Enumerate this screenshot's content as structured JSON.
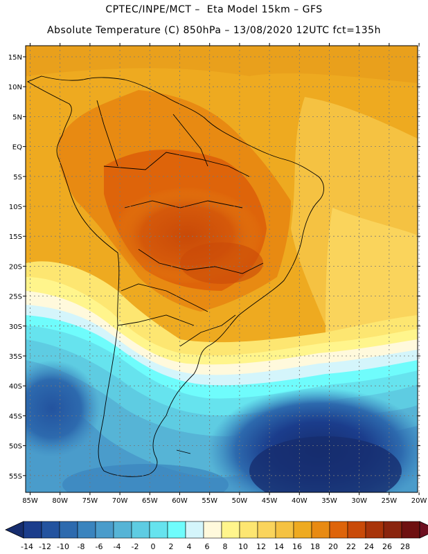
{
  "header": {
    "line1": "CPTEC/INPE/MCT –  Eta Model 15km – GFS",
    "line2": "Absolute Temperature (C) 850hPa – 13/08/2020 12UTC fct=135h"
  },
  "map": {
    "lat_labels": [
      "15N",
      "10N",
      "5N",
      "EQ",
      "5S",
      "10S",
      "15S",
      "20S",
      "25S",
      "30S",
      "35S",
      "40S",
      "45S",
      "50S",
      "55S"
    ],
    "lon_labels": [
      "85W",
      "80W",
      "75W",
      "70W",
      "65W",
      "60W",
      "55W",
      "50W",
      "45W",
      "40W",
      "35W",
      "30W",
      "25W",
      "20W"
    ]
  },
  "colorbar": {
    "labels": [
      "-14",
      "-12",
      "-10",
      "-8",
      "-6",
      "-4",
      "-2",
      "0",
      "2",
      "4",
      "6",
      "8",
      "10",
      "12",
      "14",
      "16",
      "18",
      "20",
      "22",
      "24",
      "26",
      "28"
    ],
    "colors": [
      "#1b3d8c",
      "#23539f",
      "#2d6aae",
      "#3a84be",
      "#4a9ccb",
      "#56b4d6",
      "#5ecce2",
      "#66e3ee",
      "#6ffcfc",
      "#d4f5fb",
      "#fff9dc",
      "#fff58c",
      "#fde671",
      "#fad45c",
      "#f5c242",
      "#eeaa20",
      "#e88a12",
      "#de640a",
      "#c94a08",
      "#a8340a",
      "#8a250e",
      "#6e1010"
    ],
    "low_color": "#162d6e",
    "high_color": "#6e0f20"
  },
  "colors": {
    "frame": "#000000",
    "grid": "#777777",
    "coast": "#000000"
  }
}
